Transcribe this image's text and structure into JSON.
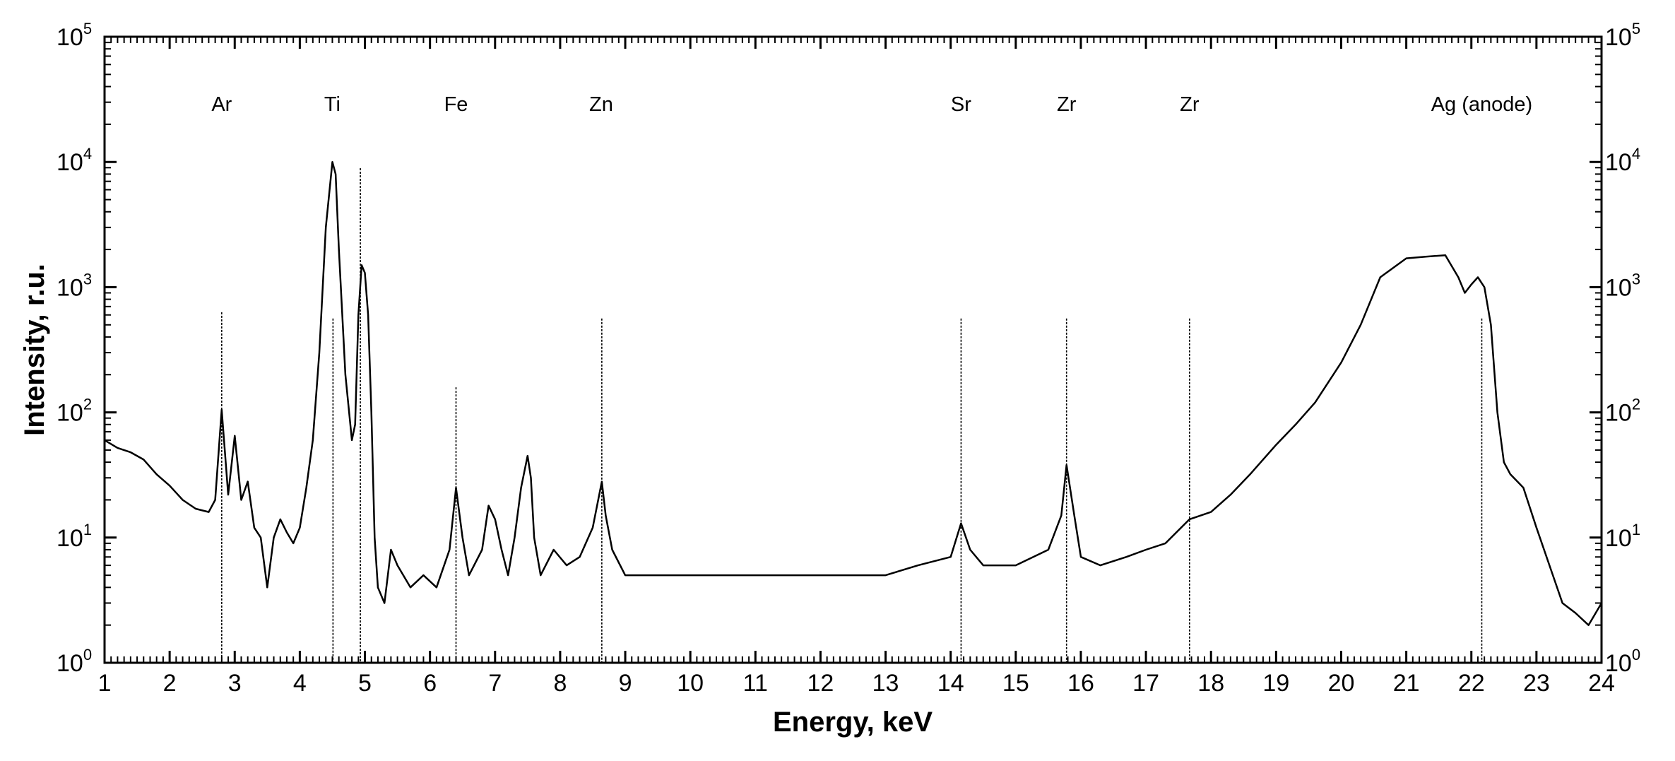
{
  "chart_data": {
    "type": "line",
    "xlabel": "Energy, keV",
    "ylabel": "Intensity, r.u.",
    "xlim": [
      1,
      24
    ],
    "ylim": [
      1,
      100000
    ],
    "yscale": "log",
    "grid": false,
    "legend": "none",
    "x_ticks": [
      "1",
      "2",
      "3",
      "4",
      "5",
      "6",
      "7",
      "8",
      "9",
      "10",
      "11",
      "12",
      "13",
      "14",
      "15",
      "16",
      "17",
      "18",
      "19",
      "20",
      "21",
      "22",
      "23",
      "24"
    ],
    "y_ticks": [
      {
        "base": "10",
        "exp": "0"
      },
      {
        "base": "10",
        "exp": "1"
      },
      {
        "base": "10",
        "exp": "2"
      },
      {
        "base": "10",
        "exp": "3"
      },
      {
        "base": "10",
        "exp": "4"
      },
      {
        "base": "10",
        "exp": "5"
      }
    ],
    "peak_labels": [
      {
        "text": "Ar",
        "x": 2.8
      },
      {
        "text": "Ti",
        "x": 4.5
      },
      {
        "text": "Fe",
        "x": 6.4
      },
      {
        "text": "Zn",
        "x": 8.63
      },
      {
        "text": "Sr",
        "x": 14.16
      },
      {
        "text": "Zr",
        "x": 15.78
      },
      {
        "text": "Zr",
        "x": 17.67
      },
      {
        "text": "Ag (anode)",
        "x": 22.16
      }
    ],
    "marker_lines": [
      {
        "x": 2.8,
        "top": 2.8
      },
      {
        "x": 4.51,
        "top": 2.75
      },
      {
        "x": 4.93,
        "top": 3.95
      },
      {
        "x": 6.4,
        "top": 2.2
      },
      {
        "x": 8.64,
        "top": 2.75
      },
      {
        "x": 14.16,
        "top": 2.75
      },
      {
        "x": 15.78,
        "top": 2.75
      },
      {
        "x": 17.67,
        "top": 2.75
      },
      {
        "x": 22.16,
        "top": 2.75
      }
    ],
    "series": [
      {
        "values": [
          [
            1.0,
            60
          ],
          [
            1.2,
            52
          ],
          [
            1.4,
            48
          ],
          [
            1.6,
            42
          ],
          [
            1.8,
            32
          ],
          [
            2.0,
            26
          ],
          [
            2.2,
            20
          ],
          [
            2.4,
            17
          ],
          [
            2.6,
            16
          ],
          [
            2.7,
            20
          ],
          [
            2.8,
            105
          ],
          [
            2.9,
            22
          ],
          [
            3.0,
            65
          ],
          [
            3.1,
            20
          ],
          [
            3.2,
            28
          ],
          [
            3.3,
            12
          ],
          [
            3.4,
            10
          ],
          [
            3.5,
            4
          ],
          [
            3.6,
            10
          ],
          [
            3.7,
            14
          ],
          [
            3.8,
            11
          ],
          [
            3.9,
            9
          ],
          [
            4.0,
            12
          ],
          [
            4.1,
            25
          ],
          [
            4.2,
            60
          ],
          [
            4.3,
            300
          ],
          [
            4.4,
            3000
          ],
          [
            4.5,
            10000
          ],
          [
            4.55,
            8000
          ],
          [
            4.6,
            2000
          ],
          [
            4.7,
            200
          ],
          [
            4.8,
            60
          ],
          [
            4.85,
            80
          ],
          [
            4.9,
            600
          ],
          [
            4.95,
            1500
          ],
          [
            5.0,
            1300
          ],
          [
            5.05,
            600
          ],
          [
            5.1,
            100
          ],
          [
            5.15,
            10
          ],
          [
            5.2,
            4
          ],
          [
            5.3,
            3
          ],
          [
            5.4,
            8
          ],
          [
            5.5,
            6
          ],
          [
            5.7,
            4
          ],
          [
            5.9,
            5
          ],
          [
            6.1,
            4
          ],
          [
            6.3,
            8
          ],
          [
            6.4,
            25
          ],
          [
            6.5,
            10
          ],
          [
            6.6,
            5
          ],
          [
            6.8,
            8
          ],
          [
            6.9,
            18
          ],
          [
            7.0,
            14
          ],
          [
            7.1,
            8
          ],
          [
            7.2,
            5
          ],
          [
            7.3,
            10
          ],
          [
            7.4,
            25
          ],
          [
            7.5,
            45
          ],
          [
            7.55,
            30
          ],
          [
            7.6,
            10
          ],
          [
            7.7,
            5
          ],
          [
            7.9,
            8
          ],
          [
            8.1,
            6
          ],
          [
            8.3,
            7
          ],
          [
            8.5,
            12
          ],
          [
            8.64,
            28
          ],
          [
            8.7,
            15
          ],
          [
            8.8,
            8
          ],
          [
            9.0,
            5
          ],
          [
            9.5,
            5
          ],
          [
            10.0,
            5
          ],
          [
            10.5,
            5
          ],
          [
            11.0,
            5
          ],
          [
            11.5,
            5
          ],
          [
            12.0,
            5
          ],
          [
            12.5,
            5
          ],
          [
            13.0,
            5
          ],
          [
            13.5,
            6
          ],
          [
            14.0,
            7
          ],
          [
            14.16,
            13
          ],
          [
            14.3,
            8
          ],
          [
            14.5,
            6
          ],
          [
            15.0,
            6
          ],
          [
            15.5,
            8
          ],
          [
            15.7,
            15
          ],
          [
            15.78,
            38
          ],
          [
            15.9,
            15
          ],
          [
            16.0,
            7
          ],
          [
            16.3,
            6
          ],
          [
            16.7,
            7
          ],
          [
            17.0,
            8
          ],
          [
            17.3,
            9
          ],
          [
            17.67,
            14
          ],
          [
            18.0,
            16
          ],
          [
            18.3,
            22
          ],
          [
            18.6,
            32
          ],
          [
            19.0,
            55
          ],
          [
            19.3,
            80
          ],
          [
            19.6,
            120
          ],
          [
            20.0,
            250
          ],
          [
            20.3,
            500
          ],
          [
            20.6,
            1200
          ],
          [
            21.0,
            1700
          ],
          [
            21.3,
            1750
          ],
          [
            21.6,
            1800
          ],
          [
            21.8,
            1200
          ],
          [
            21.9,
            900
          ],
          [
            22.0,
            1050
          ],
          [
            22.1,
            1200
          ],
          [
            22.2,
            1000
          ],
          [
            22.3,
            500
          ],
          [
            22.4,
            100
          ],
          [
            22.5,
            40
          ],
          [
            22.6,
            32
          ],
          [
            22.8,
            25
          ],
          [
            23.0,
            12
          ],
          [
            23.2,
            6
          ],
          [
            23.4,
            3
          ],
          [
            23.6,
            2.5
          ],
          [
            23.8,
            2
          ],
          [
            24.0,
            3
          ]
        ]
      }
    ]
  }
}
